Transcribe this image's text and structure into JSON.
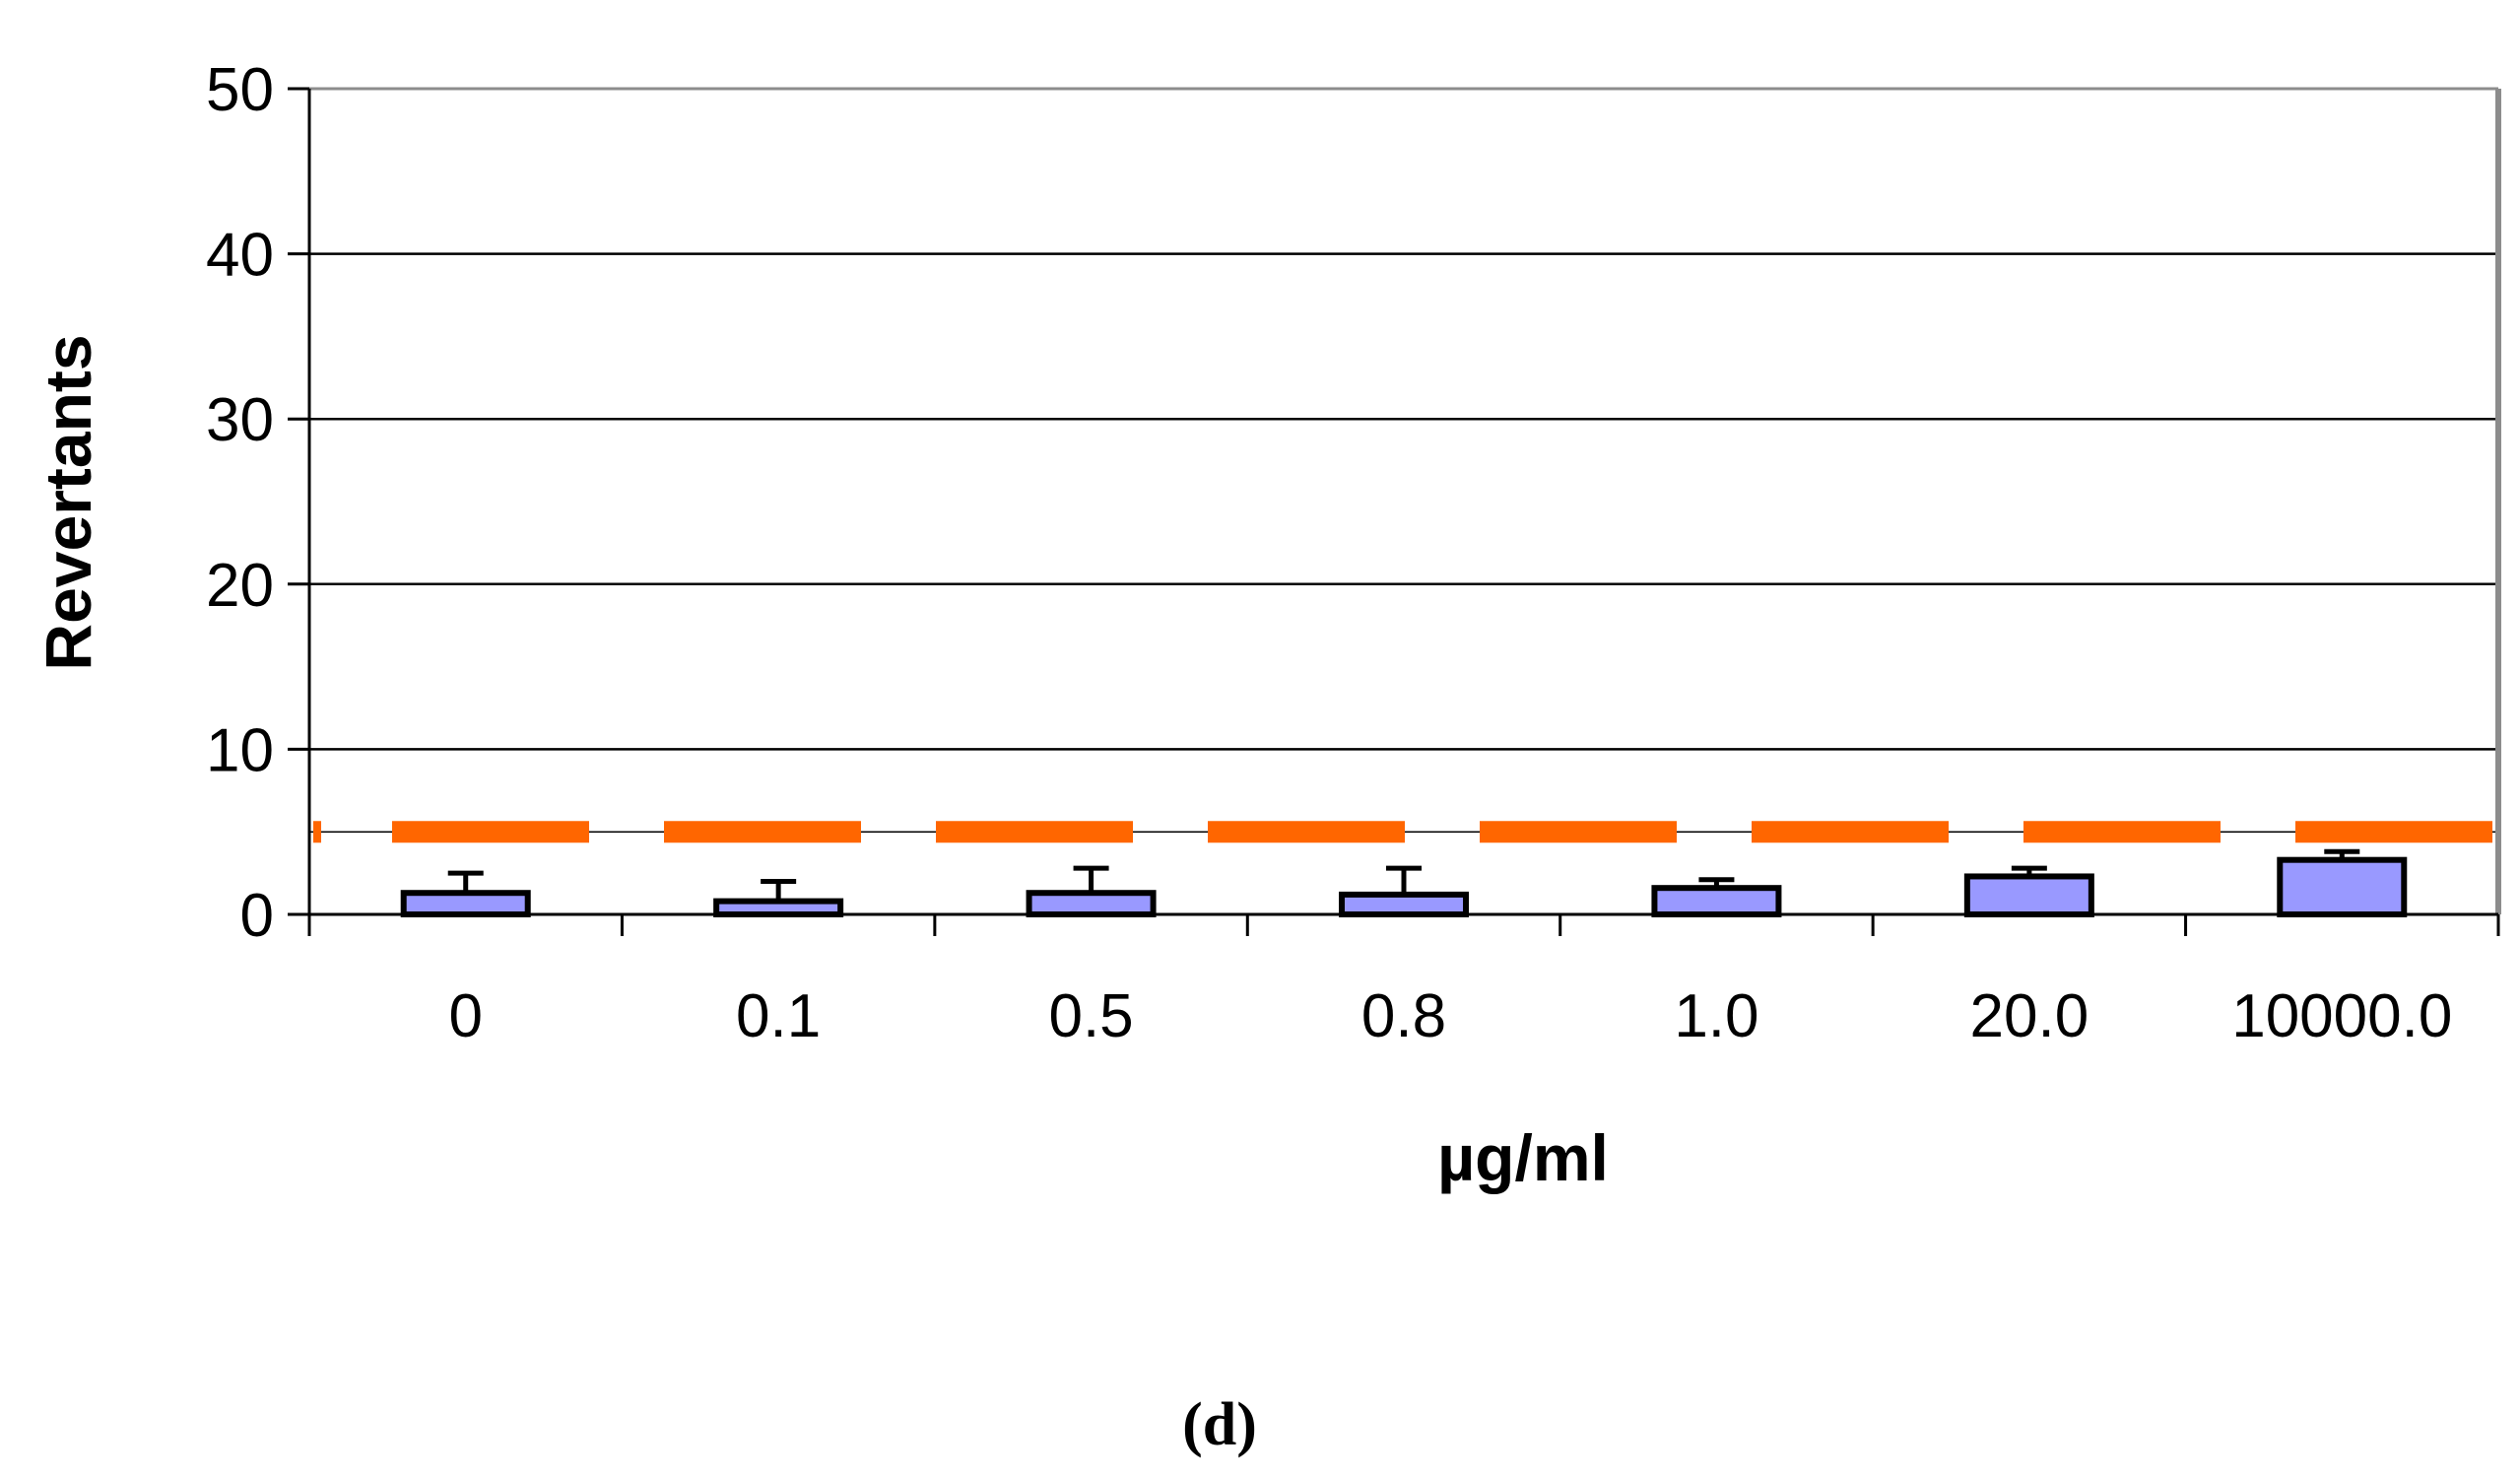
{
  "chart_data": {
    "type": "bar",
    "title": "",
    "panel_label": "(d)",
    "xlabel": "µg/ml",
    "ylabel": "Revertants",
    "categories": [
      "0",
      "0.1",
      "0.5",
      "0.8",
      "1.0",
      "20.0",
      "10000.0"
    ],
    "series": [
      {
        "name": "Revertants",
        "values": [
          1.3,
          0.8,
          1.3,
          1.2,
          1.6,
          2.3,
          3.3
        ],
        "errors": [
          1.2,
          1.2,
          1.5,
          1.6,
          0.5,
          0.5,
          0.5
        ],
        "color": "#9999ff"
      }
    ],
    "reference_line": {
      "value": 5,
      "style": "dashed",
      "color": "#ff6600"
    },
    "ylim": [
      0,
      50
    ],
    "yticks": [
      "0",
      "10",
      "20",
      "30",
      "40",
      "50"
    ],
    "grid": true
  }
}
